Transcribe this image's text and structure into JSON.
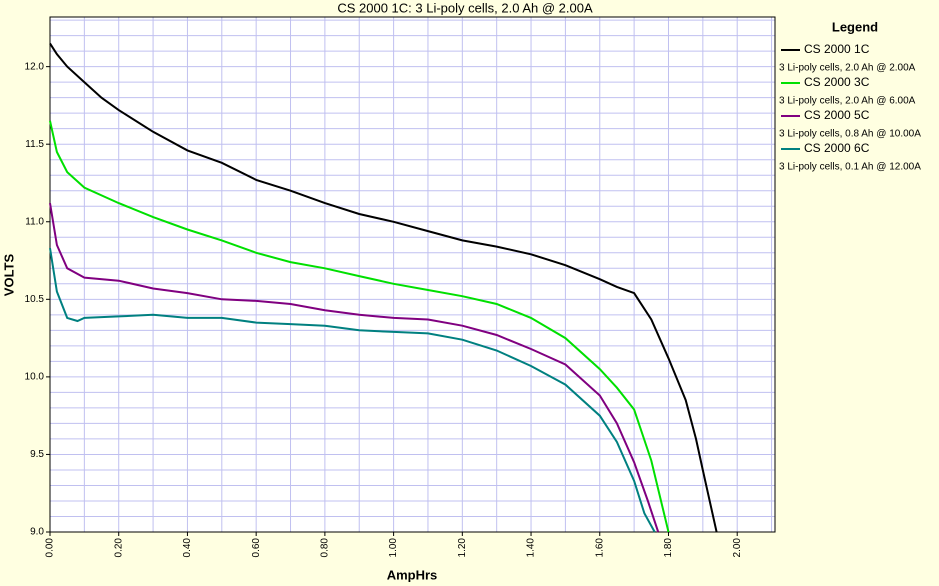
{
  "chart_data": {
    "type": "line",
    "title": "CS 2000 1C: 3 Li-poly cells, 2.0 Ah @ 2.00A",
    "x_label": "AmpHrs",
    "y_label": "VOLTS",
    "legend_title": "Legend",
    "legend": "right",
    "xlim": [
      0,
      2.11
    ],
    "ylim": [
      9.0,
      12.32
    ],
    "grid": true,
    "xticks": [
      {
        "value": 0,
        "label": "0.00"
      },
      {
        "value": 0.2,
        "label": "0.20"
      },
      {
        "value": 0.4,
        "label": "0.40"
      },
      {
        "value": 0.6,
        "label": "0.60"
      },
      {
        "value": 0.8,
        "label": "0.80"
      },
      {
        "value": 1.0,
        "label": "1.00"
      },
      {
        "value": 1.2,
        "label": "1.20"
      },
      {
        "value": 1.4,
        "label": "1.40"
      },
      {
        "value": 1.6,
        "label": "1.60"
      },
      {
        "value": 1.8,
        "label": "1.80"
      },
      {
        "value": 2.0,
        "label": "2.00"
      }
    ],
    "yticks": [
      {
        "value": 9,
        "label": "9.0"
      },
      9.5,
      {
        "value": 10,
        "label": "10.0"
      },
      10.5,
      {
        "value": 11,
        "label": "11.0"
      },
      11.5,
      {
        "value": 12,
        "label": "12.0"
      }
    ],
    "series": [
      {
        "name": "CS 2000 1C",
        "description": "3 Li-poly cells, 2.0 Ah @ 2.00A",
        "color": "#000000",
        "x": [
          0,
          0.02,
          0.05,
          0.1,
          0.15,
          0.2,
          0.3,
          0.4,
          0.5,
          0.6,
          0.7,
          0.8,
          0.9,
          1.0,
          1.1,
          1.2,
          1.3,
          1.4,
          1.5,
          1.6,
          1.65,
          1.7,
          1.75,
          1.8,
          1.85,
          1.88,
          1.9,
          1.94
        ],
        "values": [
          12.15,
          12.08,
          12.0,
          11.9,
          11.8,
          11.72,
          11.58,
          11.46,
          11.38,
          11.27,
          11.2,
          11.12,
          11.05,
          11.0,
          10.94,
          10.88,
          10.84,
          10.79,
          10.72,
          10.63,
          10.58,
          10.54,
          10.37,
          10.12,
          9.85,
          9.6,
          9.4,
          9.0
        ]
      },
      {
        "name": "CS 2000 3C",
        "description": "3 Li-poly cells, 2.0 Ah @ 6.00A",
        "color": "#00e000",
        "x": [
          0,
          0.02,
          0.05,
          0.1,
          0.2,
          0.3,
          0.4,
          0.5,
          0.6,
          0.7,
          0.8,
          0.9,
          1.0,
          1.1,
          1.2,
          1.3,
          1.4,
          1.5,
          1.6,
          1.65,
          1.7,
          1.75,
          1.8
        ],
        "values": [
          11.65,
          11.45,
          11.32,
          11.22,
          11.12,
          11.03,
          10.95,
          10.88,
          10.8,
          10.74,
          10.7,
          10.65,
          10.6,
          10.56,
          10.52,
          10.47,
          10.38,
          10.25,
          10.05,
          9.93,
          9.79,
          9.46,
          9.0
        ]
      },
      {
        "name": "CS 2000 5C",
        "description": "3 Li-poly cells, 0.8 Ah @ 10.00A",
        "color": "#800080",
        "x": [
          0,
          0.02,
          0.05,
          0.1,
          0.2,
          0.3,
          0.4,
          0.5,
          0.6,
          0.7,
          0.8,
          0.9,
          1.0,
          1.1,
          1.2,
          1.3,
          1.4,
          1.5,
          1.6,
          1.65,
          1.7,
          1.74,
          1.77
        ],
        "values": [
          11.12,
          10.85,
          10.7,
          10.64,
          10.62,
          10.57,
          10.54,
          10.5,
          10.49,
          10.47,
          10.43,
          10.4,
          10.38,
          10.37,
          10.33,
          10.27,
          10.18,
          10.08,
          9.88,
          9.7,
          9.45,
          9.2,
          9.0
        ]
      },
      {
        "name": "CS 2000 6C",
        "description": "3 Li-poly cells, 0.1 Ah @ 12.00A",
        "color": "#008080",
        "x": [
          0,
          0.02,
          0.05,
          0.08,
          0.1,
          0.2,
          0.3,
          0.4,
          0.5,
          0.6,
          0.7,
          0.8,
          0.9,
          1.0,
          1.1,
          1.2,
          1.3,
          1.4,
          1.5,
          1.6,
          1.65,
          1.7,
          1.73,
          1.76
        ],
        "values": [
          10.83,
          10.55,
          10.38,
          10.36,
          10.38,
          10.39,
          10.4,
          10.38,
          10.38,
          10.35,
          10.34,
          10.33,
          10.3,
          10.29,
          10.28,
          10.24,
          10.17,
          10.07,
          9.95,
          9.75,
          9.58,
          9.33,
          9.12,
          9.0
        ]
      }
    ]
  }
}
